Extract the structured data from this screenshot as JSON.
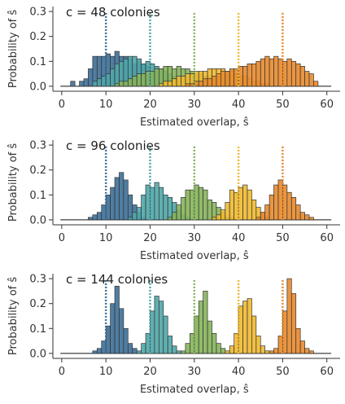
{
  "colors": {
    "series": [
      "#3d6f97",
      "#4fa6a8",
      "#86b45a",
      "#efb930",
      "#e8892c"
    ],
    "edge": "#333333",
    "axis": "#333333",
    "text": "#333333"
  },
  "chart_data": [
    {
      "type": "bar",
      "title": "c = 48 colonies",
      "xlabel": "Estimated overlap, ŝ",
      "ylabel": "Probability of ŝ",
      "xlim": [
        -2,
        63
      ],
      "ylim": [
        -0.02,
        0.32
      ],
      "xticks": [
        0,
        10,
        20,
        30,
        40,
        50,
        60
      ],
      "yticks": [
        0.0,
        0.1,
        0.2,
        0.3
      ],
      "ytick_labels": [
        "0.0",
        "0.1",
        "0.2",
        "0.3"
      ],
      "true_overlap_markers": [
        10,
        20,
        30,
        40,
        50
      ],
      "marker_top": 0.3,
      "series": [
        {
          "start": 0,
          "values": [
            0.0,
            0.0,
            0.02,
            0.0,
            0.02,
            0.03,
            0.07,
            0.12,
            0.12,
            0.12,
            0.13,
            0.12,
            0.14,
            0.12,
            0.12,
            0.11,
            0.09,
            0.1,
            0.09,
            0.08,
            0.06,
            0.05,
            0.04,
            0.03,
            0.02,
            0.01,
            0.01
          ]
        },
        {
          "start": 6,
          "values": [
            0.0,
            0.02,
            0.03,
            0.04,
            0.05,
            0.07,
            0.09,
            0.1,
            0.11,
            0.12,
            0.12,
            0.11,
            0.09,
            0.1,
            0.09,
            0.08,
            0.07,
            0.06,
            0.05,
            0.04,
            0.03,
            0.02,
            0.02,
            0.01,
            0.01
          ]
        },
        {
          "start": 11,
          "values": [
            0.0,
            0.01,
            0.02,
            0.02,
            0.03,
            0.04,
            0.05,
            0.05,
            0.06,
            0.06,
            0.07,
            0.07,
            0.08,
            0.08,
            0.07,
            0.08,
            0.07,
            0.07,
            0.06,
            0.05,
            0.05,
            0.04,
            0.04,
            0.03,
            0.02,
            0.02,
            0.01,
            0.01,
            0.0,
            0.0
          ]
        },
        {
          "start": 21,
          "values": [
            0.0,
            0.01,
            0.02,
            0.02,
            0.03,
            0.04,
            0.04,
            0.05,
            0.05,
            0.06,
            0.06,
            0.06,
            0.07,
            0.07,
            0.07,
            0.07,
            0.06,
            0.06,
            0.05,
            0.04,
            0.04,
            0.03,
            0.02,
            0.02,
            0.01,
            0.01,
            0.0,
            0.0
          ]
        },
        {
          "start": 27,
          "values": [
            0.0,
            0.01,
            0.01,
            0.02,
            0.02,
            0.03,
            0.03,
            0.04,
            0.05,
            0.06,
            0.06,
            0.07,
            0.07,
            0.08,
            0.08,
            0.09,
            0.09,
            0.1,
            0.11,
            0.12,
            0.11,
            0.12,
            0.11,
            0.1,
            0.11,
            0.1,
            0.09,
            0.08,
            0.06,
            0.05,
            0.02
          ]
        }
      ]
    },
    {
      "type": "bar",
      "title": "c = 96 colonies",
      "xlabel": "Estimated overlap, ŝ",
      "ylabel": "Probability of ŝ",
      "xlim": [
        -2,
        63
      ],
      "ylim": [
        -0.02,
        0.32
      ],
      "xticks": [
        0,
        10,
        20,
        30,
        40,
        50,
        60
      ],
      "yticks": [
        0.0,
        0.1,
        0.2,
        0.3
      ],
      "ytick_labels": [
        "0.0",
        "0.1",
        "0.2",
        "0.3"
      ],
      "true_overlap_markers": [
        10,
        20,
        30,
        40,
        50
      ],
      "marker_top": 0.3,
      "series": [
        {
          "start": 5,
          "values": [
            0.0,
            0.01,
            0.02,
            0.03,
            0.06,
            0.1,
            0.13,
            0.17,
            0.19,
            0.16,
            0.1,
            0.06,
            0.03,
            0.01,
            0.0
          ]
        },
        {
          "start": 14,
          "values": [
            0.0,
            0.01,
            0.03,
            0.05,
            0.1,
            0.14,
            0.13,
            0.15,
            0.13,
            0.1,
            0.09,
            0.07,
            0.04,
            0.02,
            0.01,
            0.0
          ]
        },
        {
          "start": 23,
          "values": [
            0.0,
            0.01,
            0.03,
            0.06,
            0.09,
            0.12,
            0.12,
            0.14,
            0.13,
            0.12,
            0.08,
            0.07,
            0.05,
            0.03,
            0.01,
            0.01,
            0.0
          ]
        },
        {
          "start": 33,
          "values": [
            0.0,
            0.01,
            0.02,
            0.04,
            0.07,
            0.12,
            0.11,
            0.13,
            0.14,
            0.12,
            0.08,
            0.05,
            0.03,
            0.01,
            0.0
          ]
        },
        {
          "start": 43,
          "values": [
            0.0,
            0.01,
            0.03,
            0.06,
            0.1,
            0.14,
            0.16,
            0.14,
            0.11,
            0.09,
            0.06,
            0.03,
            0.02,
            0.01,
            0.0
          ]
        }
      ]
    },
    {
      "type": "bar",
      "title": "c = 144 colonies",
      "xlabel": "Estimated overlap, ŝ",
      "ylabel": "Probability of ŝ",
      "xlim": [
        -2,
        63
      ],
      "ylim": [
        -0.02,
        0.32
      ],
      "xticks": [
        0,
        10,
        20,
        30,
        40,
        50,
        60
      ],
      "yticks": [
        0.0,
        0.1,
        0.2,
        0.3
      ],
      "ytick_labels": [
        "0.0",
        "0.1",
        "0.2",
        "0.3"
      ],
      "true_overlap_markers": [
        10,
        20,
        30,
        40,
        50
      ],
      "marker_top": 0.3,
      "series": [
        {
          "start": 6,
          "values": [
            0.0,
            0.01,
            0.02,
            0.05,
            0.11,
            0.2,
            0.27,
            0.18,
            0.1,
            0.04,
            0.02,
            0.0
          ]
        },
        {
          "start": 16,
          "values": [
            0.0,
            0.01,
            0.04,
            0.08,
            0.17,
            0.23,
            0.21,
            0.15,
            0.07,
            0.03,
            0.01,
            0.0
          ]
        },
        {
          "start": 26,
          "values": [
            0.0,
            0.01,
            0.04,
            0.08,
            0.15,
            0.21,
            0.25,
            0.13,
            0.08,
            0.04,
            0.02,
            0.0
          ]
        },
        {
          "start": 36,
          "values": [
            0.0,
            0.01,
            0.03,
            0.08,
            0.19,
            0.21,
            0.22,
            0.15,
            0.07,
            0.03,
            0.01,
            0.0
          ]
        },
        {
          "start": 46,
          "values": [
            0.0,
            0.01,
            0.02,
            0.07,
            0.17,
            0.3,
            0.24,
            0.1,
            0.05,
            0.02,
            0.01,
            0.0
          ]
        }
      ]
    }
  ]
}
